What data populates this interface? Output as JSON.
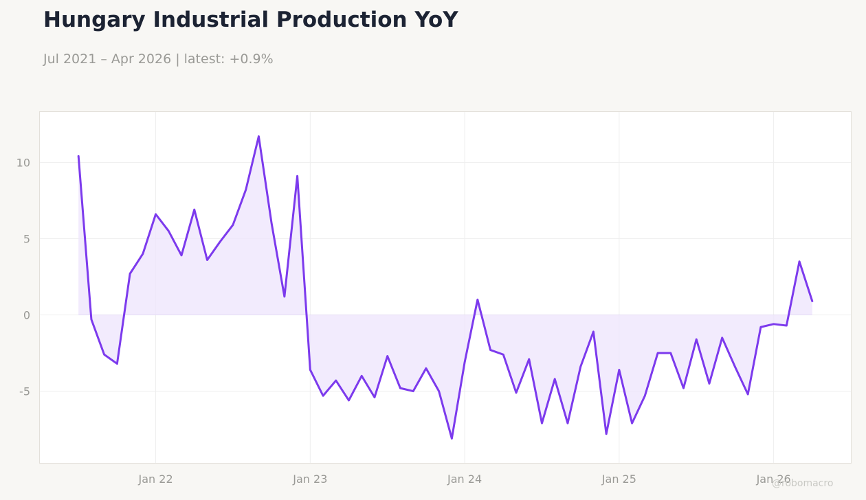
{
  "title": "Hungary Industrial Production YoY",
  "subtitle": "Jul 2021 – Apr 2026 | latest: +0.9%",
  "watermark": "@robomacro",
  "colors": {
    "background": "#f8f7f4",
    "plot_background": "#ffffff",
    "line": "#7c3aed",
    "fill": "#ede4fc",
    "grid": "#eeeeee",
    "text_muted": "#9a9a96",
    "title": "#1c2333"
  },
  "chart_data": {
    "type": "line",
    "title": "Hungary Industrial Production YoY",
    "xlabel": "",
    "ylabel": "",
    "x_start": "2021-07",
    "x_end": "2026-04",
    "x_ticks": [
      "2022-01",
      "2023-01",
      "2024-01",
      "2025-01",
      "2026-01"
    ],
    "x_tick_labels": [
      "Jan 22",
      "Jan 23",
      "Jan 24",
      "Jan 25",
      "Jan 26"
    ],
    "y_ticks": [
      -5,
      0,
      5,
      10
    ],
    "y_tick_labels": [
      "-5",
      "0",
      "5",
      "10"
    ],
    "ylim": [
      -9.7,
      13.3
    ],
    "grid": true,
    "area_fill_to_zero": true,
    "series": [
      {
        "x": [
          "2021-07",
          "2021-08",
          "2021-09",
          "2021-10",
          "2021-11",
          "2021-12",
          "2022-01",
          "2022-02",
          "2022-03",
          "2022-04",
          "2022-05",
          "2022-06",
          "2022-07",
          "2022-08",
          "2022-09",
          "2022-10",
          "2022-11",
          "2022-12",
          "2023-01",
          "2023-02",
          "2023-03",
          "2023-04",
          "2023-05",
          "2023-06",
          "2023-07",
          "2023-08",
          "2023-09",
          "2023-10",
          "2023-11",
          "2023-12",
          "2024-01",
          "2024-02",
          "2024-03",
          "2024-04",
          "2024-05",
          "2024-06",
          "2024-07",
          "2024-08",
          "2024-09",
          "2024-10",
          "2024-11",
          "2024-12",
          "2025-01",
          "2025-02",
          "2025-03",
          "2025-04",
          "2025-05",
          "2025-06",
          "2025-07",
          "2025-08",
          "2025-09",
          "2025-10",
          "2025-11",
          "2025-12",
          "2026-01",
          "2026-02",
          "2026-03",
          "2026-04"
        ],
        "values": [
          10.4,
          -0.3,
          -2.6,
          -3.2,
          2.7,
          4.0,
          6.6,
          5.5,
          3.9,
          6.9,
          3.6,
          4.8,
          5.9,
          8.2,
          11.7,
          6.0,
          1.2,
          9.1,
          -3.6,
          -5.3,
          -4.3,
          -5.6,
          -4.0,
          -5.4,
          -2.7,
          -4.8,
          -5.0,
          -3.5,
          -5.0,
          -8.1,
          -3.1,
          1.0,
          -2.3,
          -2.6,
          -5.1,
          -2.9,
          -7.1,
          -4.2,
          -7.1,
          -3.4,
          -1.1,
          -7.8,
          -3.6,
          -7.1,
          -5.3,
          -2.5,
          -2.5,
          -4.8,
          -1.6,
          -4.5,
          -1.5,
          -3.4,
          -5.2,
          -0.8,
          -0.6,
          -0.7,
          3.5,
          0.9
        ]
      }
    ]
  }
}
